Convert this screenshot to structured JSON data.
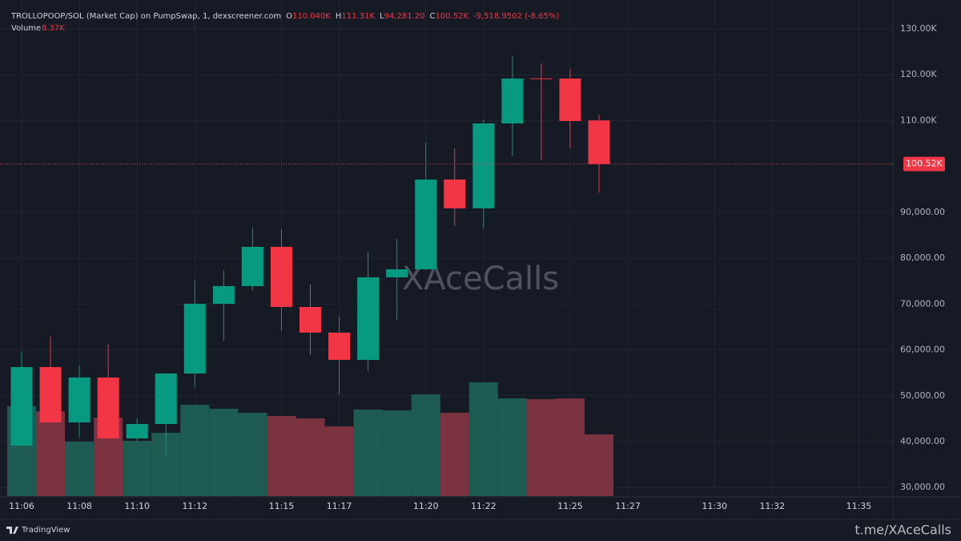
{
  "chart_data": {
    "type": "candlestick",
    "header": {
      "title": "TROLLOPOOP/SOL (Market Cap) on PumpSwap, 1, dexscreener.com",
      "ohlc_letters": [
        "O",
        "H",
        "L",
        "C"
      ],
      "ohlc_labels": [
        "110.040K",
        "111.31K",
        "94,281.20",
        "100.52K"
      ],
      "change": "-9,518.9502 (-8.65%)",
      "volume_title": "Volume",
      "volume_label": "8.37K"
    },
    "watermark": "XAceCalls",
    "footer_left": "TradingView",
    "footer_right": "t.me/XAceCalls",
    "up_color": "#089981",
    "down_color": "#f23645",
    "up_volume_color": "#1e5b52",
    "down_volume_color": "#7c3341",
    "grid": true,
    "x": [
      "11:06",
      "11:07",
      "11:08",
      "11:09",
      "11:10",
      "11:11",
      "11:12",
      "11:13",
      "11:14",
      "11:15",
      "11:16",
      "11:17",
      "11:18",
      "11:19",
      "11:20",
      "11:21",
      "11:22",
      "11:23",
      "11:24",
      "11:25",
      "11:26"
    ],
    "xticks": [
      "11:06",
      "11:08",
      "11:10",
      "11:12",
      "11:15",
      "11:17",
      "11:20",
      "11:22",
      "11:25",
      "11:27",
      "11:30",
      "11:32",
      "11:35"
    ],
    "open": [
      39123,
      56250,
      44193,
      53979,
      40698,
      43843,
      54853,
      70057,
      73902,
      82465,
      69358,
      63766,
      57824,
      75824,
      77572,
      97145,
      90854,
      109378,
      119200,
      119165,
      110040
    ],
    "high": [
      59750,
      62892,
      56600,
      61145,
      45067,
      54900,
      75125,
      77397,
      86660,
      86310,
      74252,
      67261,
      81416,
      84213,
      105184,
      103961,
      110253,
      124058,
      122485,
      121262,
      111310
    ],
    "low": [
      39100,
      44000,
      41047,
      40500,
      39943,
      36853,
      51882,
      62018,
      73000,
      64115,
      58873,
      50309,
      55377,
      66387,
      77500,
      87009,
      86485,
      102213,
      101339,
      103961,
      94281.2
    ],
    "close": [
      56250,
      44193,
      53979,
      40698,
      43843,
      54853,
      70057,
      73902,
      82465,
      69358,
      63766,
      57824,
      75824,
      77572,
      97145,
      90854,
      109378,
      119165,
      119100,
      109903,
      100520
    ],
    "volume": [
      12175,
      11500,
      7392,
      10653,
      7500,
      8587,
      12392,
      11848,
      11305,
      10870,
      10544,
      9457,
      11740,
      11631,
      13805,
      11305,
      15435,
      13261,
      13153,
      13261,
      8370
    ],
    "last_price": {
      "value": 100520,
      "label": "100.52K"
    },
    "ylim": [
      27940,
      136290
    ],
    "yticks": [
      {
        "value": 130000,
        "label": "130.00K"
      },
      {
        "value": 120000,
        "label": "120.00K"
      },
      {
        "value": 110000,
        "label": "110.00K"
      },
      {
        "value": 90000,
        "label": "90,000.00"
      },
      {
        "value": 80000,
        "label": "80,000.00"
      },
      {
        "value": 70000,
        "label": "70,000.00"
      },
      {
        "value": 60000,
        "label": "60,000.00"
      },
      {
        "value": 50000,
        "label": "50,000.00"
      },
      {
        "value": 40000,
        "label": "40,000.00"
      },
      {
        "value": 30000,
        "label": "30,000.00"
      }
    ]
  }
}
